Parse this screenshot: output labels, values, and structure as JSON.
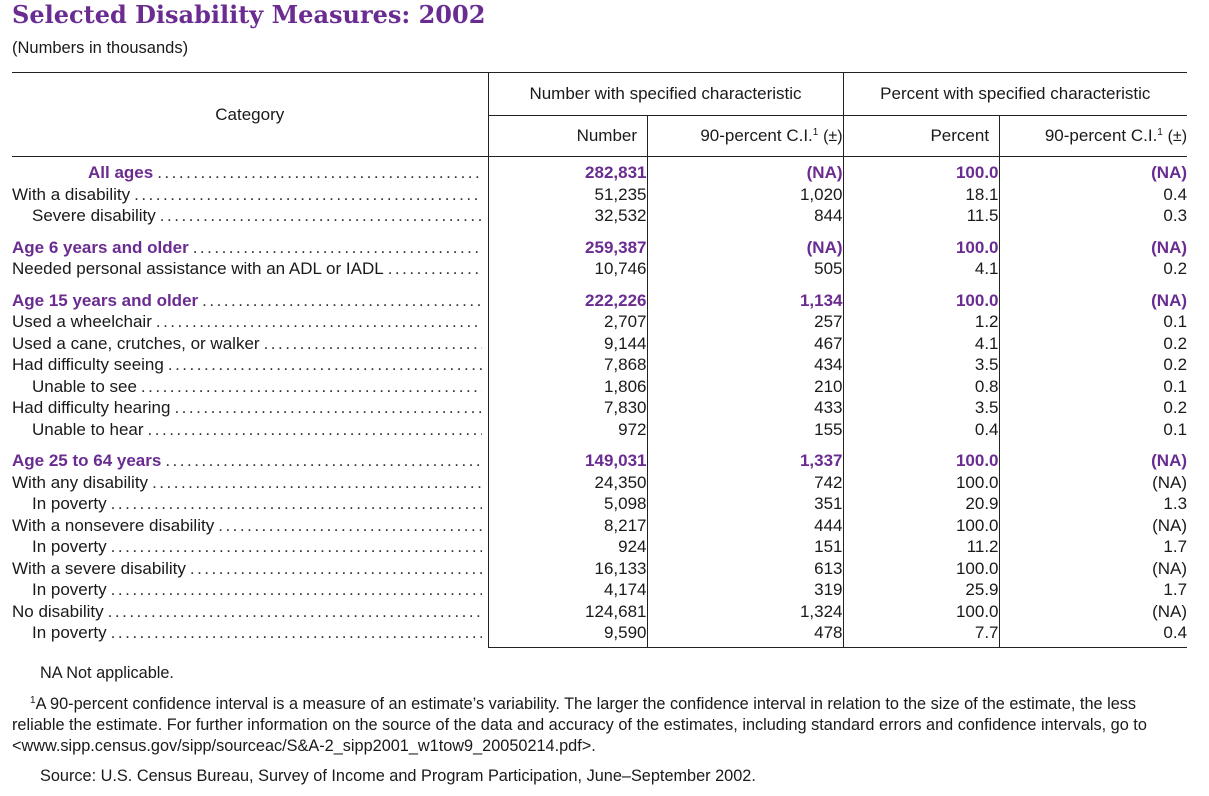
{
  "title": "Selected Disability Measures: 2002",
  "subtitle": "(Numbers in thousands)",
  "headers": {
    "category": "Category",
    "group_number": "Number with specified characteristic",
    "group_percent": "Percent with specified characteristic",
    "number": "Number",
    "ci_number": "90-percent C.I.",
    "percent": "Percent",
    "ci_percent": "90-percent C.I.",
    "footnote_mark": "1",
    "plus_minus": "(±)"
  },
  "rows": [
    {
      "label": "All ages",
      "number": "282,831",
      "ci_number": "(NA)",
      "percent": "100.0",
      "ci_percent": "(NA)"
    },
    {
      "label": "With a disability",
      "number": "51,235",
      "ci_number": "1,020",
      "percent": "18.1",
      "ci_percent": "0.4"
    },
    {
      "label": "Severe disability",
      "number": "32,532",
      "ci_number": "844",
      "percent": "11.5",
      "ci_percent": "0.3"
    },
    {
      "label": "Age 6 years and older",
      "number": "259,387",
      "ci_number": "(NA)",
      "percent": "100.0",
      "ci_percent": "(NA)"
    },
    {
      "label": "Needed personal assistance with an ADL or IADL",
      "number": "10,746",
      "ci_number": "505",
      "percent": "4.1",
      "ci_percent": "0.2"
    },
    {
      "label": "Age 15 years and older",
      "number": "222,226",
      "ci_number": "1,134",
      "percent": "100.0",
      "ci_percent": "(NA)"
    },
    {
      "label": "Used a wheelchair",
      "number": "2,707",
      "ci_number": "257",
      "percent": "1.2",
      "ci_percent": "0.1"
    },
    {
      "label": "Used a cane, crutches, or walker",
      "number": "9,144",
      "ci_number": "467",
      "percent": "4.1",
      "ci_percent": "0.2"
    },
    {
      "label": "Had difficulty seeing",
      "number": "7,868",
      "ci_number": "434",
      "percent": "3.5",
      "ci_percent": "0.2"
    },
    {
      "label": "Unable to see",
      "number": "1,806",
      "ci_number": "210",
      "percent": "0.8",
      "ci_percent": "0.1"
    },
    {
      "label": "Had difficulty hearing",
      "number": "7,830",
      "ci_number": "433",
      "percent": "3.5",
      "ci_percent": "0.2"
    },
    {
      "label": "Unable to hear",
      "number": "972",
      "ci_number": "155",
      "percent": "0.4",
      "ci_percent": "0.1"
    },
    {
      "label": "Age 25 to 64 years",
      "number": "149,031",
      "ci_number": "1,337",
      "percent": "100.0",
      "ci_percent": "(NA)"
    },
    {
      "label": "With any disability",
      "number": "24,350",
      "ci_number": "742",
      "percent": "100.0",
      "ci_percent": "(NA)"
    },
    {
      "label": "In poverty",
      "number": "5,098",
      "ci_number": "351",
      "percent": "20.9",
      "ci_percent": "1.3"
    },
    {
      "label": "With a nonsevere disability",
      "number": "8,217",
      "ci_number": "444",
      "percent": "100.0",
      "ci_percent": "(NA)"
    },
    {
      "label": "In poverty",
      "number": "924",
      "ci_number": "151",
      "percent": "11.2",
      "ci_percent": "1.7"
    },
    {
      "label": "With a severe disability",
      "number": "16,133",
      "ci_number": "613",
      "percent": "100.0",
      "ci_percent": "(NA)"
    },
    {
      "label": "In poverty",
      "number": "4,174",
      "ci_number": "319",
      "percent": "25.9",
      "ci_percent": "1.7"
    },
    {
      "label": "No disability",
      "number": "124,681",
      "ci_number": "1,324",
      "percent": "100.0",
      "ci_percent": "(NA)"
    },
    {
      "label": "In poverty",
      "number": "9,590",
      "ci_number": "478",
      "percent": "7.7",
      "ci_percent": "0.4"
    }
  ],
  "notes": {
    "na": "NA Not applicable.",
    "footnote_mark": "1",
    "footnote": "A 90-percent confidence interval is a measure of an estimate’s variability. The larger the confidence interval in relation to the size of the estimate, the less reliable the estimate. For further information on the source of the data and accuracy of the estimates, including standard errors and confidence intervals, go to <www.sipp.census.gov/sipp/sourceac/S&A-2_sipp2001_w1tow9_20050214.pdf>.",
    "source": "Source: U.S. Census Bureau, Survey of Income and Program Participation, June–September 2002."
  },
  "colors": {
    "accent": "#6a2c91",
    "text": "#1a1a1a"
  }
}
